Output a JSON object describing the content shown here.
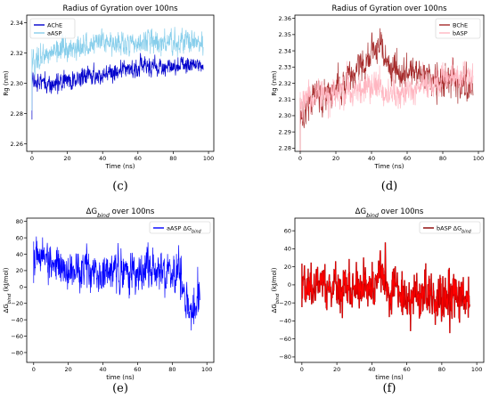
{
  "chart_data": [
    {
      "type": "line",
      "panel": "(c)",
      "title": "Radius of Gyration over 100ns",
      "xlabel": "Time (ns)",
      "ylabel": "Rg (nm)",
      "xlim": [
        -3,
        103
      ],
      "ylim": [
        2.255,
        2.345
      ],
      "xticks": [
        0,
        20,
        40,
        60,
        80,
        100
      ],
      "yticks": [
        2.26,
        2.28,
        2.3,
        2.32,
        2.34
      ],
      "ytick_labels": [
        "2.26",
        "2.28",
        "2.30",
        "2.32",
        "2.34"
      ],
      "grid": false,
      "legend": "top-left",
      "series": [
        {
          "name": "AChE",
          "color": "#0000cc",
          "x": [
            0,
            5,
            10,
            15,
            20,
            25,
            30,
            35,
            40,
            45,
            50,
            55,
            60,
            65,
            70,
            75,
            80,
            85,
            90,
            95,
            100
          ],
          "y": [
            2.3,
            2.302,
            2.298,
            2.3,
            2.302,
            2.303,
            2.304,
            2.305,
            2.306,
            2.308,
            2.307,
            2.309,
            2.31,
            2.311,
            2.312,
            2.31,
            2.311,
            2.312,
            2.313,
            2.312,
            2.312
          ],
          "noise": 0.004
        },
        {
          "name": "aASP",
          "color": "#87ceeb",
          "x": [
            0,
            5,
            10,
            15,
            20,
            25,
            30,
            35,
            40,
            45,
            50,
            55,
            60,
            65,
            70,
            75,
            80,
            85,
            90,
            95,
            100
          ],
          "y": [
            2.312,
            2.318,
            2.32,
            2.322,
            2.322,
            2.323,
            2.324,
            2.325,
            2.326,
            2.326,
            2.327,
            2.326,
            2.327,
            2.328,
            2.327,
            2.328,
            2.327,
            2.327,
            2.327,
            2.326,
            2.326
          ],
          "noise": 0.005
        }
      ]
    },
    {
      "type": "line",
      "panel": "(d)",
      "title": "Radius of Gyration over 100ns",
      "xlabel": "Time (ns)",
      "ylabel": "Rg (nm)",
      "xlim": [
        -3,
        103
      ],
      "ylim": [
        2.278,
        2.362
      ],
      "xticks": [
        0,
        20,
        40,
        60,
        80,
        100
      ],
      "yticks": [
        2.28,
        2.29,
        2.3,
        2.31,
        2.32,
        2.33,
        2.34,
        2.35,
        2.36
      ],
      "ytick_labels": [
        "2.28",
        "2.29",
        "2.30",
        "2.31",
        "2.32",
        "2.33",
        "2.34",
        "2.35",
        "2.36"
      ],
      "grid": false,
      "legend": "top-right",
      "series": [
        {
          "name": "BChE",
          "color": "#a52a2a",
          "x": [
            0,
            5,
            10,
            15,
            20,
            25,
            30,
            35,
            40,
            45,
            50,
            55,
            60,
            65,
            70,
            75,
            80,
            85,
            90,
            95,
            100
          ],
          "y": [
            2.3,
            2.31,
            2.312,
            2.314,
            2.318,
            2.32,
            2.324,
            2.33,
            2.338,
            2.342,
            2.33,
            2.326,
            2.326,
            2.328,
            2.324,
            2.322,
            2.32,
            2.322,
            2.32,
            2.318,
            2.318
          ],
          "noise": 0.006
        },
        {
          "name": "bASP",
          "color": "#ffb6c1",
          "x": [
            0,
            5,
            10,
            15,
            20,
            25,
            30,
            35,
            40,
            45,
            50,
            55,
            60,
            65,
            70,
            75,
            80,
            85,
            90,
            95,
            100
          ],
          "y": [
            2.305,
            2.312,
            2.313,
            2.314,
            2.315,
            2.314,
            2.315,
            2.316,
            2.317,
            2.315,
            2.312,
            2.312,
            2.314,
            2.316,
            2.318,
            2.32,
            2.322,
            2.323,
            2.324,
            2.325,
            2.325
          ],
          "noise": 0.006
        }
      ]
    },
    {
      "type": "line",
      "panel": "(e)",
      "title": "ΔG_bind over 100ns",
      "title_parts": {
        "pre": "ΔG",
        "sub": "bind",
        "post": " over 100ns"
      },
      "xlabel": "time (ns)",
      "ylabel": "ΔG_bind (kJ/mol)",
      "ylabel_parts": {
        "pre": "ΔG",
        "sub": "bind",
        "post": " (kJ/mol)"
      },
      "xlim": [
        -4,
        104
      ],
      "ylim": [
        -92,
        84
      ],
      "xticks": [
        0,
        20,
        40,
        60,
        80,
        100
      ],
      "yticks": [
        -80,
        -60,
        -40,
        -20,
        0,
        20,
        40,
        60,
        80
      ],
      "ytick_labels": [
        "−80",
        "−60",
        "−40",
        "−20",
        "0",
        "20",
        "40",
        "60",
        "80"
      ],
      "grid": false,
      "legend": "top-right",
      "series": [
        {
          "name": "aASP ΔG_bind",
          "name_parts": {
            "pre": "aASP ΔG",
            "sub": "bind"
          },
          "color": "#0000ff",
          "x": [
            0,
            5,
            10,
            15,
            20,
            25,
            30,
            35,
            40,
            45,
            50,
            55,
            60,
            65,
            70,
            75,
            80,
            85,
            88,
            90,
            95,
            100
          ],
          "y": [
            35,
            40,
            30,
            25,
            20,
            22,
            25,
            20,
            15,
            22,
            20,
            18,
            20,
            18,
            20,
            18,
            15,
            12,
            -20,
            -30,
            -25,
            -30
          ],
          "noise": 15
        }
      ]
    },
    {
      "type": "line",
      "panel": "(f)",
      "title": "ΔG_bind over 100ns",
      "title_parts": {
        "pre": "ΔG",
        "sub": "bind",
        "post": " over 100ns"
      },
      "xlabel": "time (ns)",
      "ylabel": "ΔG_bind (kJ/mol)",
      "ylabel_parts": {
        "pre": "ΔG",
        "sub": "bind",
        "post": " (kJ/mol)"
      },
      "xlim": [
        -4,
        104
      ],
      "ylim": [
        -86,
        74
      ],
      "xticks": [
        0,
        20,
        40,
        60,
        80,
        100
      ],
      "yticks": [
        -80,
        -60,
        -40,
        -20,
        0,
        20,
        40,
        60
      ],
      "ytick_labels": [
        "−80",
        "−60",
        "−40",
        "−20",
        "0",
        "20",
        "40",
        "60"
      ],
      "grid": false,
      "legend": "top-right",
      "series": [
        {
          "name": "bASP ΔG_bind",
          "name_parts": {
            "pre": "bASP ΔG",
            "sub": "bind"
          },
          "color": "#ff0000",
          "edge_color": "#8b0000",
          "x": [
            0,
            5,
            10,
            15,
            20,
            25,
            30,
            35,
            40,
            45,
            50,
            55,
            60,
            65,
            70,
            75,
            80,
            85,
            90,
            95,
            100
          ],
          "y": [
            0,
            0,
            -2,
            0,
            0,
            -2,
            -3,
            -2,
            0,
            10,
            -10,
            -12,
            -12,
            -14,
            -15,
            -14,
            -15,
            -14,
            -16,
            -15,
            -15
          ],
          "noise": 16
        }
      ]
    }
  ]
}
